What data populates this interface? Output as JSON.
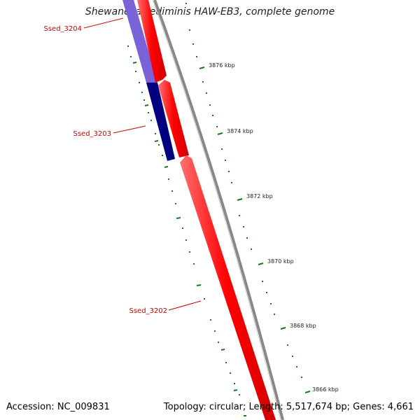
{
  "title": "Shewanella sediminis HAW-EB3, complete genome",
  "footer": {
    "accession": "Accession: NC_009831",
    "summary": "Topology: circular; Length: 5,517,674 bp; Genes: 4,661"
  },
  "colors": {
    "forward_gene": "#ff0000",
    "reverse_gene_dark": "#000080",
    "reverse_gene_light": "#7a62d8",
    "backbone": "#888888",
    "tick": "#1a7a1a",
    "label": "#cc0000"
  },
  "scale": {
    "ticks": [
      {
        "label": "3876 kbp",
        "value": 3876
      },
      {
        "label": "3874 kbp",
        "value": 3874
      },
      {
        "label": "3872 kbp",
        "value": 3872
      },
      {
        "label": "3870 kbp",
        "value": 3870
      },
      {
        "label": "3868 kbp",
        "value": 3868
      },
      {
        "label": "3866 kbp",
        "value": 3866
      }
    ]
  },
  "genes": [
    {
      "label": "Ssed_3204",
      "strand": "reverse"
    },
    {
      "label": "Ssed_3203",
      "strand": "reverse"
    },
    {
      "label": "Ssed_3202",
      "strand": "forward"
    }
  ]
}
